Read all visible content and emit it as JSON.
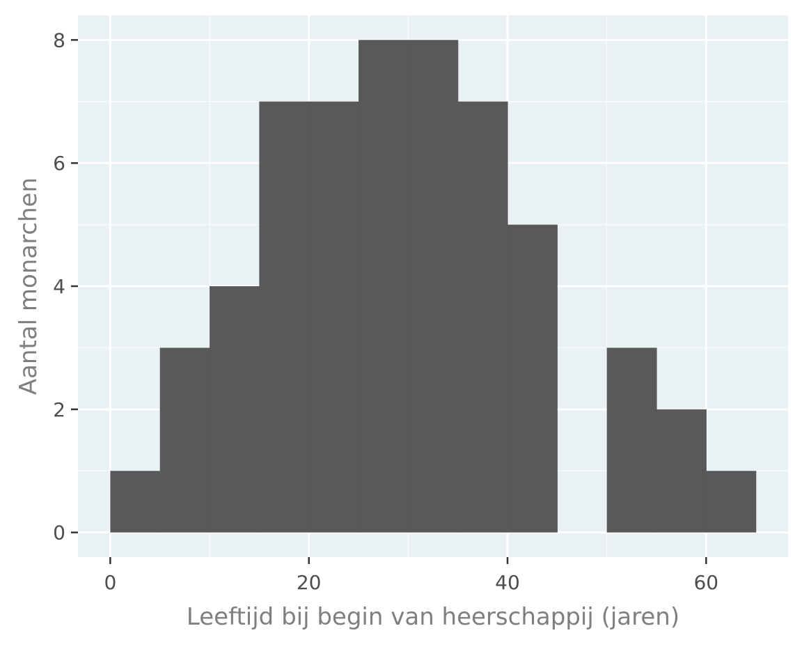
{
  "colors": {
    "panel_background": "#e9f1f5",
    "grid_major": "#ffffff",
    "grid_minor": "#f6f9fb",
    "bar_fill": "#595959",
    "tick_mark": "#333333",
    "tick_label": "#4d4d4d",
    "axis_title": "#7f7f7f"
  },
  "chart_data": {
    "type": "bar",
    "subtype": "histogram",
    "title": "",
    "xlabel": "Leeftijd bij begin van heerschappij (jaren)",
    "ylabel": "Aantal monarchen",
    "bin_edges": [
      0,
      5,
      10,
      15,
      20,
      25,
      30,
      35,
      40,
      45,
      50,
      55,
      60,
      65
    ],
    "values": [
      1,
      3,
      4,
      7,
      7,
      8,
      8,
      7,
      5,
      0,
      3,
      2,
      1
    ],
    "xlim": [
      -3.25,
      68.25
    ],
    "ylim": [
      -0.4,
      8.4
    ],
    "x_ticks": [
      0,
      20,
      40,
      60
    ],
    "x_tick_labels": [
      "0",
      "20",
      "40",
      "60"
    ],
    "y_ticks": [
      0,
      2,
      4,
      6,
      8
    ],
    "y_tick_labels": [
      "0",
      "2",
      "4",
      "6",
      "8"
    ],
    "grid": true,
    "legend": "none"
  }
}
